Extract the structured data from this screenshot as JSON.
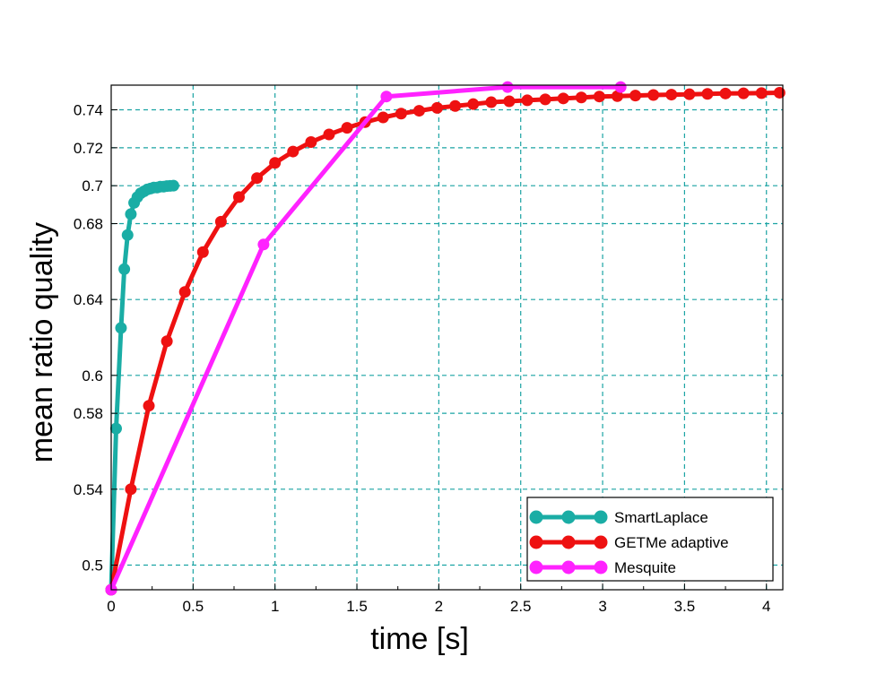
{
  "chart_data": {
    "type": "line",
    "title": "",
    "xlabel": "time [s]",
    "ylabel": "mean ratio quality",
    "xlim": [
      0,
      4.1
    ],
    "ylim": [
      0.487,
      0.753
    ],
    "x_ticks": [
      0,
      0.5,
      1,
      1.5,
      2,
      2.5,
      3,
      3.5,
      4
    ],
    "x_tick_labels": [
      "0",
      "0.5",
      "1",
      "1.5",
      "2",
      "2.5",
      "3",
      "3.5",
      "4"
    ],
    "y_ticks": [
      0.5,
      0.54,
      0.58,
      0.6,
      0.64,
      0.68,
      0.7,
      0.72,
      0.74
    ],
    "y_tick_labels": [
      "0.5",
      "0.54",
      "0.58",
      "0.6",
      "0.64",
      "0.68",
      "0.7",
      "0.72",
      "0.74"
    ],
    "grid": true,
    "grid_color": "#1aa3a3",
    "legend_position": "bottom-right",
    "series": [
      {
        "name": "SmartLaplace",
        "color": "#1aada5",
        "x": [
          0.0,
          0.03,
          0.06,
          0.08,
          0.1,
          0.12,
          0.14,
          0.16,
          0.18,
          0.2,
          0.22,
          0.24,
          0.26,
          0.28,
          0.3,
          0.32,
          0.34,
          0.36,
          0.38
        ],
        "y": [
          0.487,
          0.572,
          0.625,
          0.656,
          0.674,
          0.685,
          0.691,
          0.694,
          0.696,
          0.697,
          0.698,
          0.6985,
          0.699,
          0.699,
          0.6995,
          0.6995,
          0.6998,
          0.6999,
          0.7
        ]
      },
      {
        "name": "GETMe adaptive",
        "color": "#ee1111",
        "x": [
          0.0,
          0.12,
          0.23,
          0.34,
          0.45,
          0.56,
          0.67,
          0.78,
          0.89,
          1.0,
          1.11,
          1.22,
          1.33,
          1.44,
          1.55,
          1.66,
          1.77,
          1.88,
          1.99,
          2.1,
          2.21,
          2.32,
          2.43,
          2.54,
          2.65,
          2.76,
          2.87,
          2.98,
          3.09,
          3.2,
          3.31,
          3.42,
          3.53,
          3.64,
          3.75,
          3.86,
          3.97,
          4.08
        ],
        "y": [
          0.487,
          0.54,
          0.584,
          0.618,
          0.644,
          0.665,
          0.681,
          0.694,
          0.704,
          0.712,
          0.718,
          0.723,
          0.727,
          0.7305,
          0.7335,
          0.736,
          0.738,
          0.7395,
          0.741,
          0.742,
          0.743,
          0.744,
          0.7445,
          0.745,
          0.7455,
          0.746,
          0.7465,
          0.747,
          0.7472,
          0.7475,
          0.7478,
          0.748,
          0.7482,
          0.7484,
          0.7486,
          0.7487,
          0.7488,
          0.749
        ]
      },
      {
        "name": "Mesquite",
        "color": "#ff22ff",
        "x": [
          0.0,
          0.93,
          1.68,
          2.42,
          3.11
        ],
        "y": [
          0.487,
          0.669,
          0.747,
          0.752,
          0.752
        ]
      }
    ]
  }
}
